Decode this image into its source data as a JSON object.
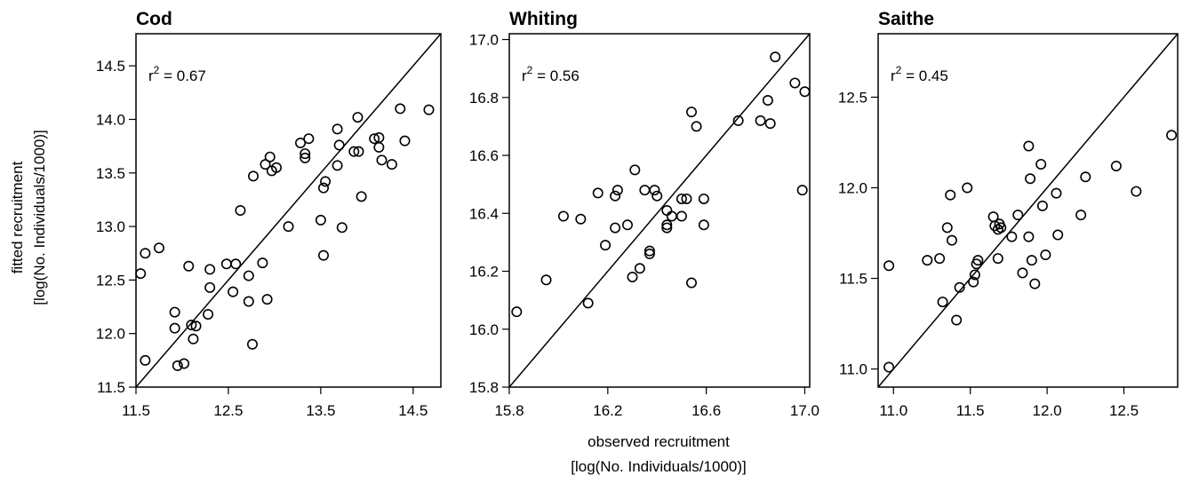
{
  "figure": {
    "ylabel_line1": "fitted recruitment",
    "ylabel_line2": "[log(No. Individuals/1000)]",
    "xlabel_line1": "observed recruitment",
    "xlabel_line2": "[log(No. Individuals/1000)]"
  },
  "chart_data": [
    {
      "type": "scatter",
      "title": "Cod",
      "r2_prefix": "r",
      "r2_sup": "2",
      "r2_suffix": " = 0.67",
      "xlim": [
        11.5,
        14.8
      ],
      "ylim": [
        11.5,
        14.8
      ],
      "xticks": [
        "11.5",
        "12.5",
        "13.5",
        "14.5"
      ],
      "xtick_values": [
        11.5,
        12.5,
        13.5,
        14.5
      ],
      "yticks": [
        "11.5",
        "12.0",
        "12.5",
        "13.0",
        "13.5",
        "14.0",
        "14.5"
      ],
      "ytick_values": [
        11.5,
        12.0,
        12.5,
        13.0,
        13.5,
        14.0,
        14.5
      ],
      "reference_line": "y = x",
      "points": [
        [
          11.55,
          12.56
        ],
        [
          11.6,
          12.75
        ],
        [
          11.6,
          11.75
        ],
        [
          11.75,
          12.8
        ],
        [
          11.92,
          12.2
        ],
        [
          11.92,
          12.05
        ],
        [
          11.95,
          11.7
        ],
        [
          12.02,
          11.72
        ],
        [
          12.07,
          12.63
        ],
        [
          12.1,
          12.08
        ],
        [
          12.12,
          11.95
        ],
        [
          12.15,
          12.07
        ],
        [
          12.28,
          12.18
        ],
        [
          12.3,
          12.43
        ],
        [
          12.3,
          12.6
        ],
        [
          12.48,
          12.65
        ],
        [
          12.55,
          12.39
        ],
        [
          12.58,
          12.65
        ],
        [
          12.63,
          13.15
        ],
        [
          12.72,
          12.54
        ],
        [
          12.72,
          12.3
        ],
        [
          12.76,
          11.9
        ],
        [
          12.77,
          13.47
        ],
        [
          12.87,
          12.66
        ],
        [
          12.9,
          13.58
        ],
        [
          12.92,
          12.32
        ],
        [
          12.95,
          13.65
        ],
        [
          12.97,
          13.52
        ],
        [
          13.02,
          13.55
        ],
        [
          13.15,
          13.0
        ],
        [
          13.28,
          13.78
        ],
        [
          13.33,
          13.68
        ],
        [
          13.33,
          13.64
        ],
        [
          13.37,
          13.82
        ],
        [
          13.5,
          13.06
        ],
        [
          13.53,
          13.36
        ],
        [
          13.55,
          13.42
        ],
        [
          13.53,
          12.73
        ],
        [
          13.68,
          13.91
        ],
        [
          13.68,
          13.57
        ],
        [
          13.7,
          13.76
        ],
        [
          13.73,
          12.99
        ],
        [
          13.86,
          13.7
        ],
        [
          13.9,
          14.02
        ],
        [
          13.91,
          13.7
        ],
        [
          13.94,
          13.28
        ],
        [
          14.08,
          13.82
        ],
        [
          14.13,
          13.83
        ],
        [
          14.13,
          13.74
        ],
        [
          14.16,
          13.62
        ],
        [
          14.27,
          13.58
        ],
        [
          14.36,
          14.1
        ],
        [
          14.41,
          13.8
        ],
        [
          14.67,
          14.09
        ]
      ]
    },
    {
      "type": "scatter",
      "title": "Whiting",
      "r2_prefix": "r",
      "r2_sup": "2",
      "r2_suffix": " = 0.56",
      "xlim": [
        15.8,
        17.02
      ],
      "ylim": [
        15.8,
        17.02
      ],
      "xticks": [
        "15.8",
        "16.2",
        "16.6",
        "17.0"
      ],
      "xtick_values": [
        15.8,
        16.2,
        16.6,
        17.0
      ],
      "yticks": [
        "15.8",
        "16.0",
        "16.2",
        "16.4",
        "16.6",
        "16.8",
        "17.0"
      ],
      "ytick_values": [
        15.8,
        16.0,
        16.2,
        16.4,
        16.6,
        16.8,
        17.0
      ],
      "reference_line": "y = x",
      "points": [
        [
          15.83,
          16.06
        ],
        [
          15.95,
          16.17
        ],
        [
          16.02,
          16.39
        ],
        [
          16.09,
          16.38
        ],
        [
          16.12,
          16.09
        ],
        [
          16.16,
          16.47
        ],
        [
          16.19,
          16.29
        ],
        [
          16.23,
          16.35
        ],
        [
          16.23,
          16.46
        ],
        [
          16.24,
          16.48
        ],
        [
          16.28,
          16.36
        ],
        [
          16.3,
          16.18
        ],
        [
          16.31,
          16.55
        ],
        [
          16.33,
          16.21
        ],
        [
          16.35,
          16.48
        ],
        [
          16.37,
          16.26
        ],
        [
          16.37,
          16.27
        ],
        [
          16.39,
          16.48
        ],
        [
          16.4,
          16.46
        ],
        [
          16.44,
          16.41
        ],
        [
          16.44,
          16.36
        ],
        [
          16.44,
          16.35
        ],
        [
          16.46,
          16.39
        ],
        [
          16.5,
          16.39
        ],
        [
          16.5,
          16.45
        ],
        [
          16.52,
          16.45
        ],
        [
          16.54,
          16.75
        ],
        [
          16.54,
          16.16
        ],
        [
          16.56,
          16.7
        ],
        [
          16.59,
          16.45
        ],
        [
          16.59,
          16.36
        ],
        [
          16.73,
          16.72
        ],
        [
          16.82,
          16.72
        ],
        [
          16.85,
          16.79
        ],
        [
          16.86,
          16.71
        ],
        [
          16.88,
          16.94
        ],
        [
          16.96,
          16.85
        ],
        [
          16.99,
          16.48
        ],
        [
          17.0,
          16.82
        ]
      ]
    },
    {
      "type": "scatter",
      "title": "Saithe",
      "r2_prefix": "r",
      "r2_sup": "2",
      "r2_suffix": " = 0.45",
      "xlim": [
        10.9,
        12.85
      ],
      "ylim": [
        10.9,
        12.85
      ],
      "xticks": [
        "11.0",
        "11.5",
        "12.0",
        "12.5"
      ],
      "xtick_values": [
        11.0,
        11.5,
        12.0,
        12.5
      ],
      "yticks": [
        "11.0",
        "11.5",
        "12.0",
        "12.5"
      ],
      "ytick_values": [
        11.0,
        11.5,
        12.0,
        12.5
      ],
      "reference_line": "y = x",
      "points": [
        [
          10.97,
          11.57
        ],
        [
          10.97,
          11.01
        ],
        [
          11.22,
          11.6
        ],
        [
          11.3,
          11.61
        ],
        [
          11.32,
          11.37
        ],
        [
          11.35,
          11.78
        ],
        [
          11.37,
          11.96
        ],
        [
          11.38,
          11.71
        ],
        [
          11.41,
          11.27
        ],
        [
          11.43,
          11.45
        ],
        [
          11.48,
          12.0
        ],
        [
          11.52,
          11.48
        ],
        [
          11.53,
          11.52
        ],
        [
          11.54,
          11.58
        ],
        [
          11.55,
          11.6
        ],
        [
          11.65,
          11.84
        ],
        [
          11.66,
          11.79
        ],
        [
          11.68,
          11.77
        ],
        [
          11.68,
          11.61
        ],
        [
          11.69,
          11.8
        ],
        [
          11.7,
          11.78
        ],
        [
          11.77,
          11.73
        ],
        [
          11.81,
          11.85
        ],
        [
          11.84,
          11.53
        ],
        [
          11.88,
          11.73
        ],
        [
          11.88,
          12.23
        ],
        [
          11.89,
          12.05
        ],
        [
          11.9,
          11.6
        ],
        [
          11.92,
          11.47
        ],
        [
          11.96,
          12.13
        ],
        [
          11.97,
          11.9
        ],
        [
          11.99,
          11.63
        ],
        [
          12.06,
          11.97
        ],
        [
          12.07,
          11.74
        ],
        [
          12.22,
          11.85
        ],
        [
          12.25,
          12.06
        ],
        [
          12.45,
          12.12
        ],
        [
          12.58,
          11.98
        ],
        [
          12.81,
          12.29
        ]
      ]
    }
  ]
}
